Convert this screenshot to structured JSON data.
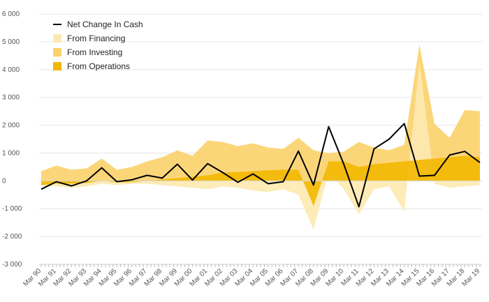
{
  "chart_data": {
    "type": "area",
    "ylim": [
      -3000,
      6000
    ],
    "y_ticks": [
      6000,
      5000,
      4000,
      3000,
      2000,
      1000,
      0,
      -1000,
      -2000,
      -3000
    ],
    "y_tick_labels": [
      "6 000",
      "5 000",
      "4 000",
      "3 000",
      "2 000",
      "1 000",
      "0",
      "-1 000",
      "-2 000",
      "-3 000"
    ],
    "x_start_year": 1990,
    "x_end_year": 2019,
    "x_tick_labels": [
      "Mar 90",
      "Mar 91",
      "Mar 92",
      "Mar 93",
      "Mar 94",
      "Mar 95",
      "Mar 96",
      "Mar 97",
      "Mar 98",
      "Mar 99",
      "Mar 00",
      "Mar 01",
      "Mar 02",
      "Mar 03",
      "Mar 04",
      "Mar 05",
      "Mar 06",
      "Mar 07",
      "Mar 08",
      "Mar 09",
      "Mar 10",
      "Mar 11",
      "Mar 12",
      "Mar 13",
      "Mar 14",
      "Mar 15",
      "Mar 16",
      "Mar 17",
      "Mar 18",
      "Mar 19"
    ],
    "legend_position": "top-left",
    "series": [
      {
        "name": "From Operations",
        "color": "#f2b800",
        "x": [
          1990,
          1991,
          1992,
          1993,
          1994,
          1995,
          1996,
          1997,
          1998,
          1999,
          2000,
          2001,
          2002,
          2003,
          2004,
          2005,
          2006,
          2007,
          2008,
          2009,
          2010,
          2011,
          2012,
          2013,
          2014,
          2015,
          2016,
          2017,
          2018,
          2019
        ],
        "y": [
          -150,
          -100,
          -100,
          -80,
          0,
          -50,
          -50,
          0,
          50,
          100,
          150,
          200,
          300,
          320,
          350,
          380,
          400,
          400,
          -900,
          700,
          700,
          500,
          600,
          650,
          700,
          750,
          800,
          850,
          900,
          850
        ]
      },
      {
        "name": "From Investing",
        "color": "#fbd26a",
        "x": [
          1990,
          1991,
          1992,
          1993,
          1994,
          1995,
          1996,
          1997,
          1998,
          1999,
          2000,
          2001,
          2002,
          2003,
          2004,
          2005,
          2006,
          2007,
          2008,
          2009,
          2010,
          2011,
          2012,
          2013,
          2014,
          2015,
          2016,
          2017,
          2018,
          2019
        ],
        "y": [
          350,
          550,
          400,
          450,
          800,
          400,
          500,
          700,
          850,
          1100,
          900,
          1450,
          1400,
          1250,
          1350,
          1200,
          1150,
          1550,
          1100,
          1000,
          1050,
          1400,
          1200,
          1100,
          1300,
          4900,
          2050,
          1550,
          2550,
          2500
        ]
      },
      {
        "name": "From Financing",
        "color": "#fde9b0",
        "x": [
          1990,
          1991,
          1992,
          1993,
          1994,
          1995,
          1996,
          1997,
          1998,
          1999,
          2000,
          2001,
          2002,
          2003,
          2004,
          2005,
          2006,
          2007,
          2008,
          2009,
          2010,
          2011,
          2012,
          2013,
          2014,
          2015,
          2016,
          2017,
          2018,
          2019
        ],
        "y": [
          -200,
          -200,
          -250,
          -200,
          -100,
          -150,
          -100,
          -100,
          -150,
          -200,
          -250,
          -300,
          -200,
          -250,
          -350,
          -400,
          -300,
          -500,
          -1750,
          300,
          -300,
          -1200,
          -300,
          -200,
          -1100,
          4300,
          -100,
          -250,
          -200,
          -150
        ]
      },
      {
        "name": "Net Change In Cash",
        "color": "#000000",
        "x": [
          1990,
          1991,
          1992,
          1993,
          1994,
          1995,
          1996,
          1997,
          1998,
          1999,
          2000,
          2001,
          2002,
          2003,
          2004,
          2005,
          2006,
          2007,
          2008,
          2009,
          2010,
          2011,
          2012,
          2013,
          2014,
          2015,
          2016,
          2017,
          2018,
          2019
        ],
        "y": [
          -300,
          -30,
          -180,
          0,
          470,
          -30,
          40,
          200,
          100,
          600,
          30,
          620,
          300,
          -50,
          250,
          -100,
          -30,
          1070,
          -150,
          1950,
          600,
          -930,
          1150,
          1500,
          2060,
          170,
          200,
          930,
          1060,
          660
        ]
      }
    ]
  }
}
